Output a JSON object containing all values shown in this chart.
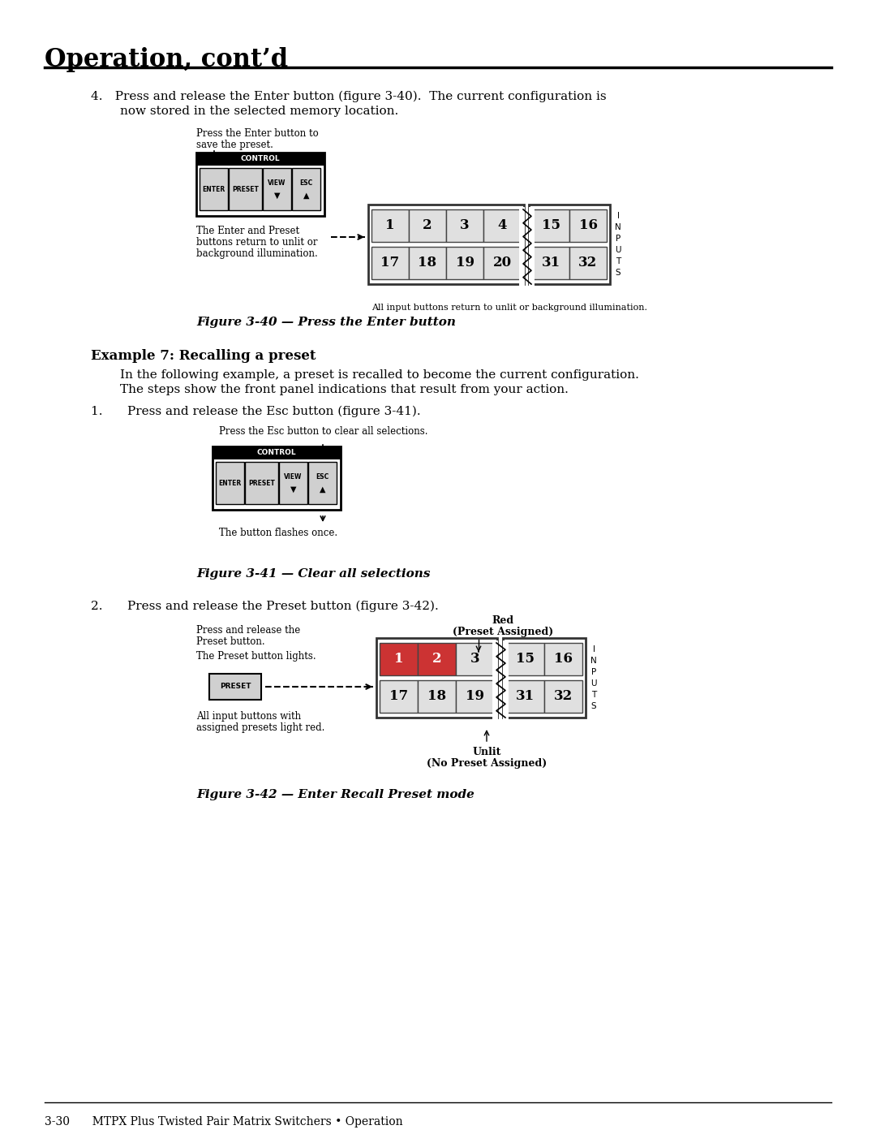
{
  "page_title": "Operation, cont’d",
  "bg_color": "#ffffff",
  "text_color": "#000000",
  "section4_line1": "4. Press and release the Enter button (figure 3-40).  The current configuration is",
  "section4_line2": "now stored in the selected memory location.",
  "fig40_label_line1": "Press the Enter button to",
  "fig40_label_line2": "save the preset.",
  "fig40_caption_line1": "The Enter and Preset",
  "fig40_caption_line2": "buttons return to unlit or",
  "fig40_caption_line3": "background illumination.",
  "fig40_note": "All input buttons return to unlit or background illumination.",
  "fig40_title": "Figure 3-40 — Press the Enter button",
  "example7_title": "Example 7: Recalling a preset",
  "example7_body_line1": "In the following example, a preset is recalled to become the current configuration.",
  "example7_body_line2": "The steps show the front panel indications that result from your action.",
  "step1_text": "1.  Press and release the Esc button (figure 3-41).",
  "fig41_label": "Press the Esc button to clear all selections.",
  "fig41_caption": "The button flashes once.",
  "fig41_title": "Figure 3-41 — Clear all selections",
  "step2_text": "2.  Press and release the Preset button (figure 3-42).",
  "fig42_red_line1": "Red",
  "fig42_red_line2": "(Preset Assigned)",
  "fig42_left_text1a": "Press and release the",
  "fig42_left_text1b": "Preset button.",
  "fig42_left_text2": "The Preset button lights.",
  "fig42_left_text3a": "All input buttons with",
  "fig42_left_text3b": "assigned presets light red.",
  "fig42_unlit_line1": "Unlit",
  "fig42_unlit_line2": "(No Preset Assigned)",
  "fig42_title": "Figure 3-42 — Enter Recall Preset mode",
  "footer_text": "3-30  MTPX Plus Twisted Pair Matrix Switchers • Operation",
  "control_buttons": [
    "ENTER",
    "PRESET",
    "VIEW",
    "ESC"
  ],
  "control_header": "CONTROL",
  "grid40_row1": [
    "1",
    "2",
    "3",
    "4",
    "15",
    "16"
  ],
  "grid40_row2": [
    "17",
    "18",
    "19",
    "20",
    "31",
    "32"
  ],
  "grid42_row1": [
    "1",
    "2",
    "3",
    "15",
    "16"
  ],
  "grid42_row2": [
    "17",
    "18",
    "19",
    "31",
    "32"
  ],
  "grid42_row1_red": [
    true,
    true,
    false,
    false,
    false
  ],
  "grid42_row2_red": [
    false,
    false,
    false,
    false,
    false
  ]
}
